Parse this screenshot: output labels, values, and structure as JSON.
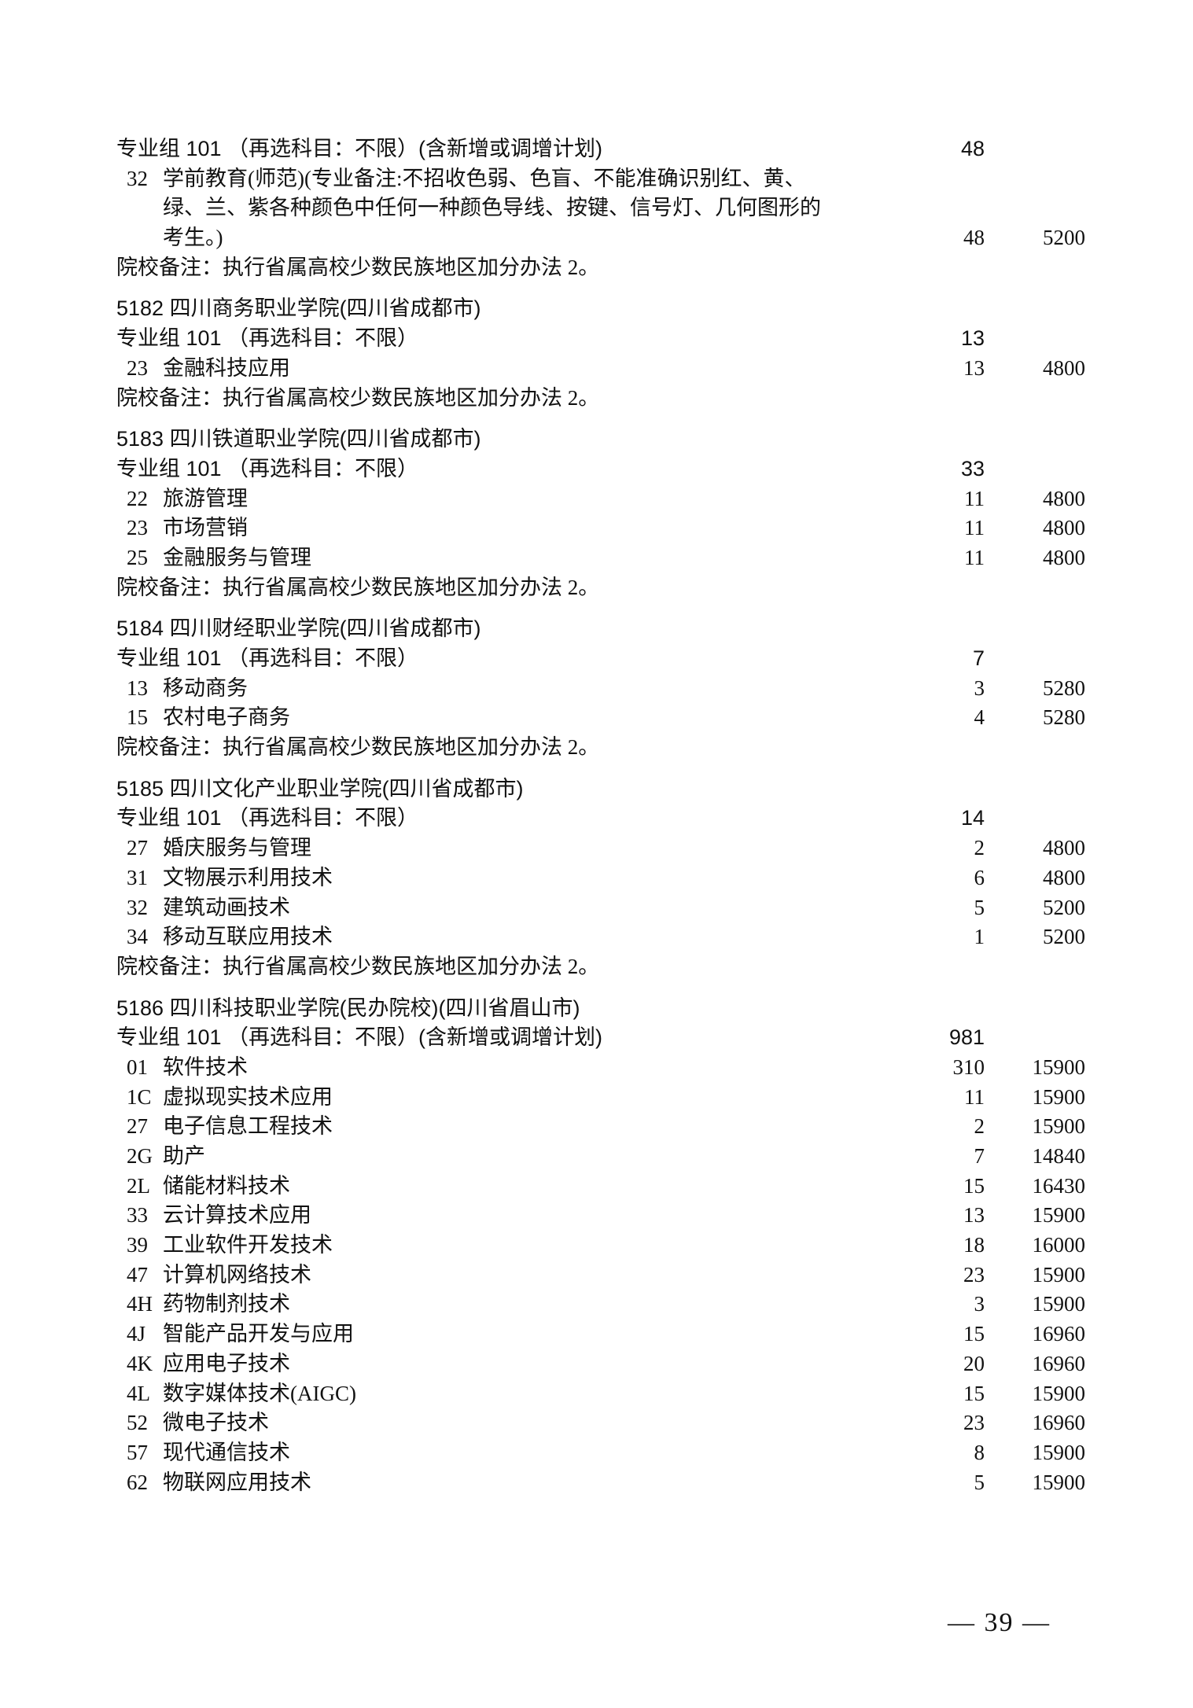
{
  "sections": [
    {
      "school": "",
      "groups": [
        {
          "label": "专业组 101 （再选科目：不限）(含新增或调增计划)",
          "count": "48",
          "items": [
            {
              "code": "32",
              "name_lines": [
                "学前教育(师范)(专业备注:不招收色弱、色盲、不能准确识别红、黄、",
                "绿、兰、紫各种颜色中任何一种颜色导线、按键、信号灯、几何图形的",
                "考生。)"
              ],
              "count": "48",
              "fee": "5200"
            }
          ]
        }
      ],
      "remark_label": "院校备注：",
      "remark": "执行省属高校少数民族地区加分办法 2。"
    },
    {
      "school": "5182  四川商务职业学院(四川省成都市)",
      "groups": [
        {
          "label": "专业组 101 （再选科目：不限）",
          "count": "13",
          "items": [
            {
              "code": "23",
              "name_lines": [
                "金融科技应用"
              ],
              "count": "13",
              "fee": "4800"
            }
          ]
        }
      ],
      "remark_label": "院校备注：",
      "remark": "执行省属高校少数民族地区加分办法 2。"
    },
    {
      "school": "5183  四川铁道职业学院(四川省成都市)",
      "groups": [
        {
          "label": "专业组 101 （再选科目：不限）",
          "count": "33",
          "items": [
            {
              "code": "22",
              "name_lines": [
                "旅游管理"
              ],
              "count": "11",
              "fee": "4800"
            },
            {
              "code": "23",
              "name_lines": [
                "市场营销"
              ],
              "count": "11",
              "fee": "4800"
            },
            {
              "code": "25",
              "name_lines": [
                "金融服务与管理"
              ],
              "count": "11",
              "fee": "4800"
            }
          ]
        }
      ],
      "remark_label": "院校备注：",
      "remark": "执行省属高校少数民族地区加分办法 2。"
    },
    {
      "school": "5184  四川财经职业学院(四川省成都市)",
      "groups": [
        {
          "label": "专业组 101 （再选科目：不限）",
          "count": "7",
          "items": [
            {
              "code": "13",
              "name_lines": [
                "移动商务"
              ],
              "count": "3",
              "fee": "5280"
            },
            {
              "code": "15",
              "name_lines": [
                "农村电子商务"
              ],
              "count": "4",
              "fee": "5280"
            }
          ]
        }
      ],
      "remark_label": "院校备注：",
      "remark": "执行省属高校少数民族地区加分办法 2。"
    },
    {
      "school": "5185  四川文化产业职业学院(四川省成都市)",
      "groups": [
        {
          "label": "专业组 101 （再选科目：不限）",
          "count": "14",
          "items": [
            {
              "code": "27",
              "name_lines": [
                "婚庆服务与管理"
              ],
              "count": "2",
              "fee": "4800"
            },
            {
              "code": "31",
              "name_lines": [
                "文物展示利用技术"
              ],
              "count": "6",
              "fee": "4800"
            },
            {
              "code": "32",
              "name_lines": [
                "建筑动画技术"
              ],
              "count": "5",
              "fee": "5200"
            },
            {
              "code": "34",
              "name_lines": [
                "移动互联应用技术"
              ],
              "count": "1",
              "fee": "5200"
            }
          ]
        }
      ],
      "remark_label": "院校备注：",
      "remark": "执行省属高校少数民族地区加分办法 2。"
    },
    {
      "school": "5186  四川科技职业学院(民办院校)(四川省眉山市)",
      "groups": [
        {
          "label": "专业组 101 （再选科目：不限）(含新增或调增计划)",
          "count": "981",
          "items": [
            {
              "code": "01",
              "name_lines": [
                "软件技术"
              ],
              "count": "310",
              "fee": "15900"
            },
            {
              "code": "1C",
              "name_lines": [
                "虚拟现实技术应用"
              ],
              "count": "11",
              "fee": "15900"
            },
            {
              "code": "27",
              "name_lines": [
                "电子信息工程技术"
              ],
              "count": "2",
              "fee": "15900"
            },
            {
              "code": "2G",
              "name_lines": [
                "助产"
              ],
              "count": "7",
              "fee": "14840"
            },
            {
              "code": "2L",
              "name_lines": [
                "储能材料技术"
              ],
              "count": "15",
              "fee": "16430"
            },
            {
              "code": "33",
              "name_lines": [
                "云计算技术应用"
              ],
              "count": "13",
              "fee": "15900"
            },
            {
              "code": "39",
              "name_lines": [
                "工业软件开发技术"
              ],
              "count": "18",
              "fee": "16000"
            },
            {
              "code": "47",
              "name_lines": [
                "计算机网络技术"
              ],
              "count": "23",
              "fee": "15900"
            },
            {
              "code": "4H",
              "name_lines": [
                "药物制剂技术"
              ],
              "count": "3",
              "fee": "15900"
            },
            {
              "code": "4J",
              "name_lines": [
                "智能产品开发与应用"
              ],
              "count": "15",
              "fee": "16960"
            },
            {
              "code": "4K",
              "name_lines": [
                "应用电子技术"
              ],
              "count": "20",
              "fee": "16960"
            },
            {
              "code": "4L",
              "name_lines": [
                "数字媒体技术(AIGC)"
              ],
              "count": "15",
              "fee": "15900"
            },
            {
              "code": "52",
              "name_lines": [
                "微电子技术"
              ],
              "count": "23",
              "fee": "16960"
            },
            {
              "code": "57",
              "name_lines": [
                "现代通信技术"
              ],
              "count": "8",
              "fee": "15900"
            },
            {
              "code": "62",
              "name_lines": [
                "物联网应用技术"
              ],
              "count": "5",
              "fee": "15900"
            }
          ]
        }
      ],
      "remark_label": "",
      "remark": ""
    }
  ],
  "page_number": "— 39 —"
}
